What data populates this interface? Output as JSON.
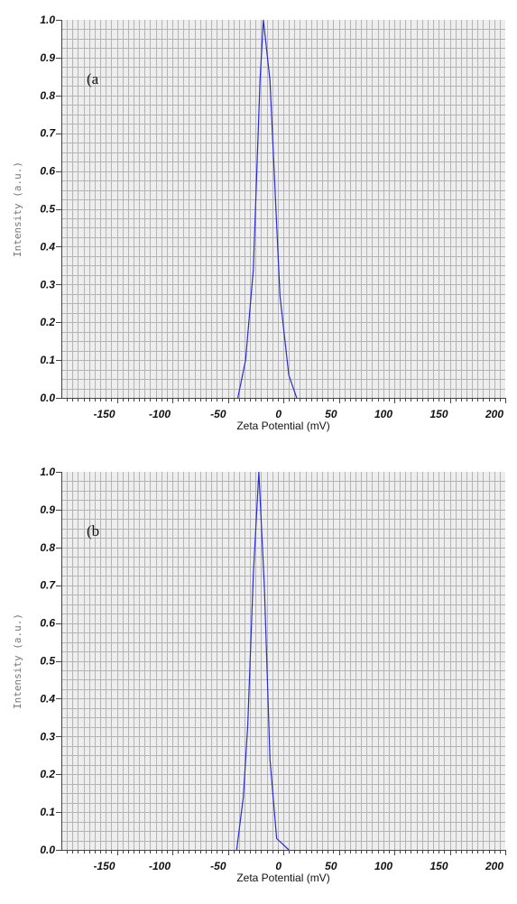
{
  "chart_data": [
    {
      "type": "line",
      "panel_label": "(a",
      "xlabel": "Zeta Potential (mV)",
      "ylabel": "Intensity (a.u.)",
      "xlim": [
        -200,
        200
      ],
      "ylim": [
        0,
        1
      ],
      "xticks": [
        -150,
        -100,
        -50,
        0,
        50,
        100,
        150,
        200
      ],
      "xtick_labels": [
        "-150",
        "-100",
        "-50",
        "0",
        "50",
        "100",
        "150",
        "200"
      ],
      "yticks": [
        0,
        0.1,
        0.2,
        0.3,
        0.4,
        0.5,
        0.6,
        0.7,
        0.8,
        0.9,
        1.0
      ],
      "ytick_labels": [
        "0.0",
        "0.1",
        "0.2",
        "0.3",
        "0.4",
        "0.5",
        "0.6",
        "0.7",
        "0.8",
        "0.9",
        "1.0"
      ],
      "grid": true,
      "series": [
        {
          "color": "#2b2bd6",
          "x": [
            -41,
            -34,
            -27,
            -21,
            -18,
            -12,
            -3,
            5,
            12
          ],
          "y": [
            0.0,
            0.1,
            0.34,
            0.84,
            1.0,
            0.84,
            0.27,
            0.06,
            0.0
          ]
        }
      ]
    },
    {
      "type": "line",
      "panel_label": "(b",
      "xlabel": "Zeta Potential (mV)",
      "ylabel": "Intensity (a.u.)",
      "xlim": [
        -200,
        200
      ],
      "ylim": [
        0,
        1
      ],
      "xticks": [
        -150,
        -100,
        -50,
        0,
        50,
        100,
        150,
        200
      ],
      "xtick_labels": [
        "-150",
        "-100",
        "-50",
        "0",
        "50",
        "100",
        "150",
        "200"
      ],
      "yticks": [
        0,
        0.1,
        0.2,
        0.3,
        0.4,
        0.5,
        0.6,
        0.7,
        0.8,
        0.9,
        1.0
      ],
      "ytick_labels": [
        "0.0",
        "0.1",
        "0.2",
        "0.3",
        "0.4",
        "0.5",
        "0.6",
        "0.7",
        "0.8",
        "0.9",
        "1.0"
      ],
      "grid": true,
      "series": [
        {
          "color": "#2b2bd6",
          "x": [
            -42,
            -36,
            -32,
            -27,
            -22,
            -17,
            -12,
            -6,
            5
          ],
          "y": [
            0.0,
            0.14,
            0.33,
            0.73,
            1.0,
            0.69,
            0.24,
            0.03,
            0.0
          ]
        }
      ]
    }
  ]
}
